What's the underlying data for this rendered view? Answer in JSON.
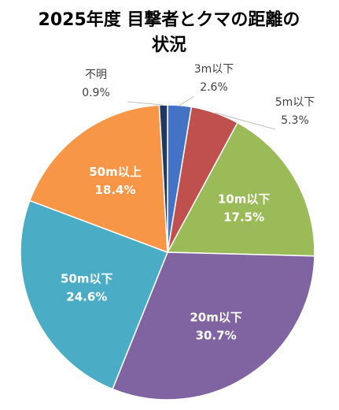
{
  "chart_data": {
    "type": "pie",
    "title": [
      "2025年度 目撃者とクマの距離の",
      "状況"
    ],
    "categories": [
      "3m以下",
      "5m以下",
      "10m以下",
      "20m以下",
      "50m以下",
      "50m以上",
      "不明"
    ],
    "values": [
      2.6,
      5.3,
      17.5,
      30.7,
      24.6,
      18.4,
      0.9
    ],
    "value_labels": [
      "2.6%",
      "5.3%",
      "17.5%",
      "30.7%",
      "24.6%",
      "18.4%",
      "0.9%"
    ],
    "colors": [
      "#4472c4",
      "#c0504d",
      "#9bbb59",
      "#8064a2",
      "#4bacc6",
      "#f79646",
      "#1f3864"
    ]
  }
}
